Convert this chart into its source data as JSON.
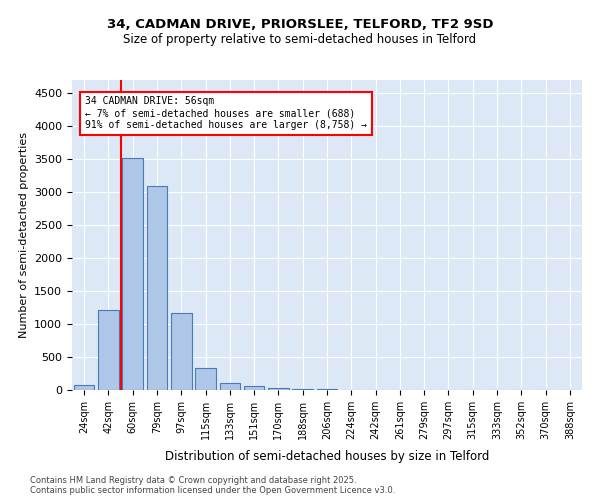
{
  "title1": "34, CADMAN DRIVE, PRIORSLEE, TELFORD, TF2 9SD",
  "title2": "Size of property relative to semi-detached houses in Telford",
  "xlabel": "Distribution of semi-detached houses by size in Telford",
  "ylabel": "Number of semi-detached properties",
  "categories": [
    "24sqm",
    "42sqm",
    "60sqm",
    "79sqm",
    "97sqm",
    "115sqm",
    "133sqm",
    "151sqm",
    "170sqm",
    "188sqm",
    "206sqm",
    "224sqm",
    "242sqm",
    "261sqm",
    "279sqm",
    "297sqm",
    "315sqm",
    "333sqm",
    "352sqm",
    "370sqm",
    "388sqm"
  ],
  "values": [
    75,
    1220,
    3520,
    3100,
    1160,
    340,
    100,
    55,
    35,
    20,
    10,
    5,
    0,
    0,
    0,
    0,
    0,
    0,
    0,
    0,
    0
  ],
  "bar_color": "#aec6e8",
  "bar_edge_color": "#4a7bb5",
  "annotation_text_line1": "34 CADMAN DRIVE: 56sqm",
  "annotation_text_line2": "← 7% of semi-detached houses are smaller (688)",
  "annotation_text_line3": "91% of semi-detached houses are larger (8,758) →",
  "red_line_x": 1.5,
  "ylim": [
    0,
    4700
  ],
  "yticks": [
    0,
    500,
    1000,
    1500,
    2000,
    2500,
    3000,
    3500,
    4000,
    4500
  ],
  "background_color": "#dce8f5",
  "footer_line1": "Contains HM Land Registry data © Crown copyright and database right 2025.",
  "footer_line2": "Contains public sector information licensed under the Open Government Licence v3.0."
}
